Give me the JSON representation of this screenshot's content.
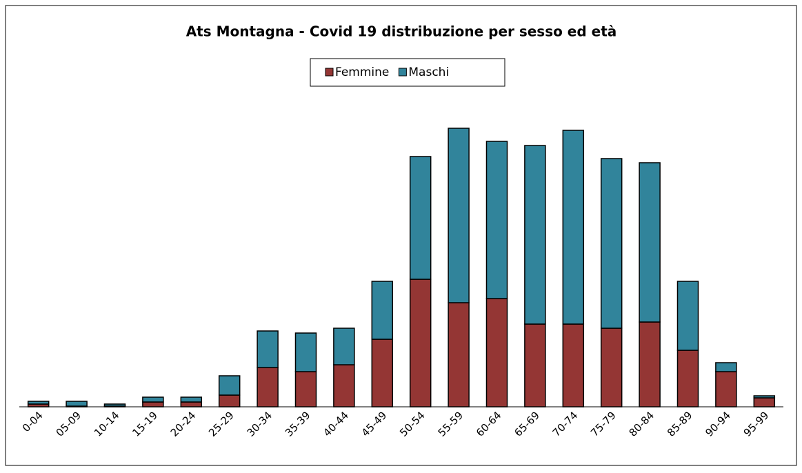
{
  "chart_data": {
    "type": "stacked_bar",
    "title": "Ats Montagna - Covid 19 distribuzione per sesso ed età",
    "categories": [
      "0-04",
      "05-09",
      "10-14",
      "15-19",
      "20-24",
      "25-29",
      "30-34",
      "35-39",
      "40-44",
      "45-49",
      "50-54",
      "55-59",
      "60-64",
      "65-69",
      "70-74",
      "75-79",
      "80-84",
      "85-89",
      "90-94",
      "95-99"
    ],
    "series": [
      {
        "name": "Femmine",
        "color": "#943634",
        "values": [
          4,
          1,
          1,
          7,
          7,
          17,
          57,
          51,
          61,
          98,
          185,
          151,
          157,
          120,
          120,
          114,
          123,
          82,
          51,
          13
        ]
      },
      {
        "name": "Maschi",
        "color": "#31849b",
        "values": [
          4,
          7,
          3,
          7,
          7,
          28,
          53,
          56,
          53,
          84,
          178,
          253,
          228,
          259,
          281,
          246,
          231,
          100,
          13,
          3
        ]
      }
    ],
    "legend": "top"
  }
}
